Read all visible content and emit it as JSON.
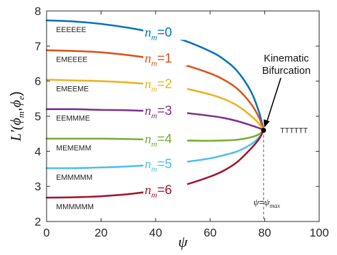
{
  "chart_data": {
    "type": "line",
    "xlabel": "ψ",
    "ylabel": "L′(ϕm,ϕe)",
    "xlim": [
      0,
      100
    ],
    "ylim": [
      2,
      8
    ],
    "xticks": [
      "0",
      "20",
      "40",
      "60",
      "80",
      "100"
    ],
    "yticks": [
      "2",
      "3",
      "4",
      "5",
      "6",
      "7",
      "8"
    ],
    "grid": false,
    "series": [
      {
        "name": "nm=0",
        "n": "0",
        "code": "EEEEEE",
        "color": "#0072BD",
        "x": [
          0,
          10,
          20,
          30,
          40,
          50,
          60,
          65,
          70,
          75,
          78,
          79.6
        ],
        "y": [
          7.73,
          7.7,
          7.63,
          7.52,
          7.37,
          7.17,
          6.85,
          6.62,
          6.28,
          5.7,
          5.1,
          4.6
        ]
      },
      {
        "name": "nm=1",
        "n": "1",
        "code": "EMEEEE",
        "color": "#D95319",
        "x": [
          0,
          10,
          20,
          30,
          40,
          50,
          60,
          65,
          70,
          75,
          78,
          79.6
        ],
        "y": [
          6.88,
          6.86,
          6.82,
          6.74,
          6.63,
          6.47,
          6.22,
          6.04,
          5.78,
          5.35,
          4.95,
          4.6
        ]
      },
      {
        "name": "nm=2",
        "n": "2",
        "code": "EMEEME",
        "color": "#EDB120",
        "x": [
          0,
          10,
          20,
          30,
          40,
          50,
          60,
          65,
          70,
          75,
          78,
          79.6
        ],
        "y": [
          6.04,
          6.02,
          6.0,
          5.96,
          5.9,
          5.8,
          5.62,
          5.49,
          5.3,
          5.01,
          4.78,
          4.6
        ]
      },
      {
        "name": "nm=3",
        "n": "3",
        "code": "EEMMME",
        "color": "#7E2F8E",
        "x": [
          0,
          10,
          20,
          30,
          40,
          50,
          60,
          65,
          70,
          75,
          78,
          79.6
        ],
        "y": [
          5.2,
          5.2,
          5.18,
          5.17,
          5.14,
          5.1,
          5.01,
          4.95,
          4.86,
          4.74,
          4.66,
          4.6
        ]
      },
      {
        "name": "nm=4",
        "n": "4",
        "code": "MEMEMM",
        "color": "#77AC30",
        "x": [
          0,
          10,
          20,
          30,
          40,
          50,
          60,
          65,
          70,
          75,
          78,
          79.6
        ],
        "y": [
          4.36,
          4.36,
          4.36,
          4.35,
          4.33,
          4.31,
          4.3,
          4.31,
          4.33,
          4.4,
          4.49,
          4.6
        ]
      },
      {
        "name": "nm=5",
        "n": "5",
        "code": "EMMMMM",
        "color": "#4DBEEE",
        "x": [
          0,
          10,
          20,
          30,
          40,
          50,
          60,
          65,
          70,
          75,
          78,
          79.6
        ],
        "y": [
          3.52,
          3.52,
          3.54,
          3.57,
          3.62,
          3.69,
          3.8,
          3.89,
          4.0,
          4.2,
          4.4,
          4.6
        ]
      },
      {
        "name": "nm=6",
        "n": "6",
        "code": "MMMMMM",
        "color": "#A2142F",
        "x": [
          0,
          10,
          20,
          30,
          40,
          50,
          60,
          65,
          70,
          75,
          78,
          79.6
        ],
        "y": [
          2.68,
          2.69,
          2.72,
          2.78,
          2.88,
          3.03,
          3.28,
          3.45,
          3.7,
          4.08,
          4.36,
          4.6
        ]
      }
    ],
    "bifurcation": {
      "x": 79.6,
      "y": 4.6,
      "label_line1": "Kinematic",
      "label_line2": "Bifurcation",
      "code": "TTTTTT",
      "vline_label": "ψ=ψmax"
    }
  }
}
